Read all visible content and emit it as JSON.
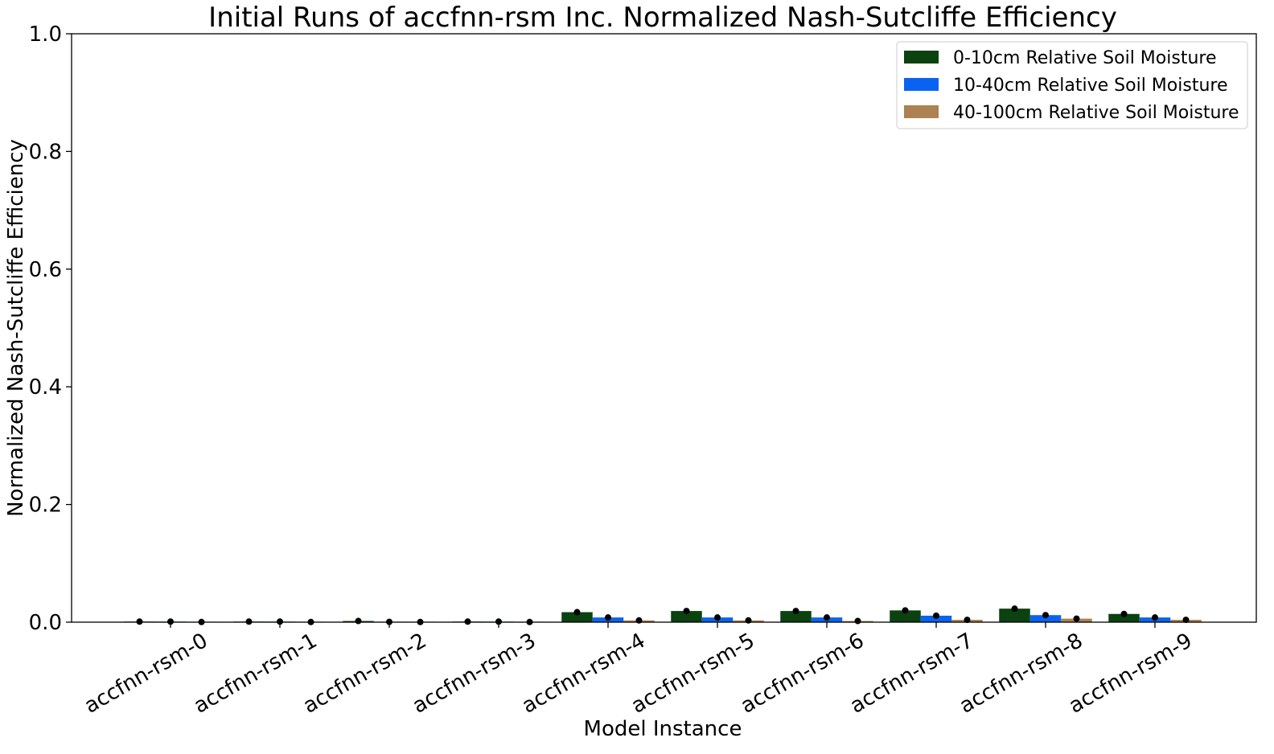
{
  "chart_data": {
    "type": "bar",
    "title": "Initial Runs of accfnn-rsm Inc. Normalized Nash-Sutcliffe Efficiency",
    "xlabel": "Model Instance",
    "ylabel": "Normalized Nash-Sutcliffe Efficiency",
    "ylim": [
      0,
      1.0
    ],
    "yticks": [
      "0.0",
      "0.2",
      "0.4",
      "0.6",
      "0.8",
      "1.0"
    ],
    "grid": false,
    "legend_position": "top-right",
    "categories": [
      "accfnn-rsm-0",
      "accfnn-rsm-1",
      "accfnn-rsm-2",
      "accfnn-rsm-3",
      "accfnn-rsm-4",
      "accfnn-rsm-5",
      "accfnn-rsm-6",
      "accfnn-rsm-7",
      "accfnn-rsm-8",
      "accfnn-rsm-9"
    ],
    "series": [
      {
        "name": "0-10cm Relative Soil Moisture",
        "color": "#0b4210",
        "values": [
          0.001,
          0.001,
          0.002,
          0.001,
          0.017,
          0.019,
          0.019,
          0.02,
          0.023,
          0.014
        ]
      },
      {
        "name": "10-40cm Relative Soil Moisture",
        "color": "#0a63f0",
        "values": [
          0.001,
          0.001,
          0.0005,
          0.001,
          0.008,
          0.008,
          0.008,
          0.011,
          0.012,
          0.008
        ]
      },
      {
        "name": "40-100cm Relative Soil Moisture",
        "color": "#ad8150",
        "values": [
          0.0003,
          0.0003,
          0.0003,
          0.0003,
          0.003,
          0.003,
          0.002,
          0.004,
          0.006,
          0.004
        ]
      }
    ]
  }
}
